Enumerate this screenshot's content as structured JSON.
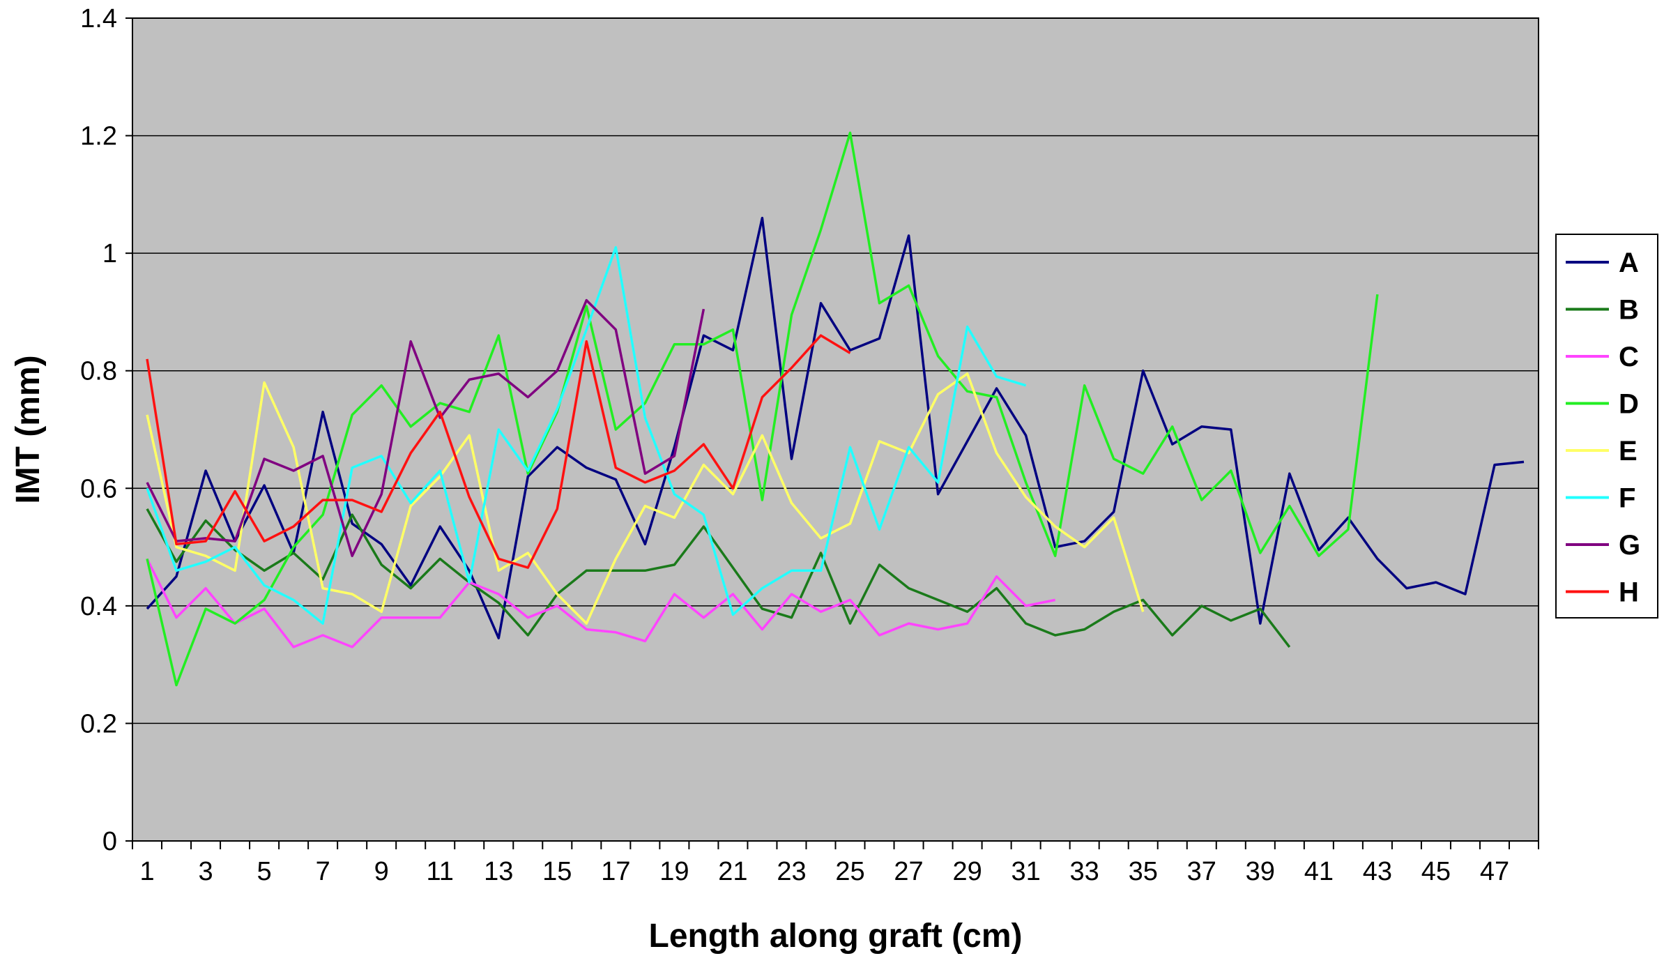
{
  "chart_data": {
    "type": "line",
    "xlabel": "Length along graft (cm)",
    "ylabel": "IMT (mm)",
    "xlim": [
      1,
      48
    ],
    "ylim": [
      0,
      1.4
    ],
    "x_ticks": [
      1,
      3,
      5,
      7,
      9,
      11,
      13,
      15,
      17,
      19,
      21,
      23,
      25,
      27,
      29,
      31,
      33,
      35,
      37,
      39,
      41,
      43,
      45,
      47
    ],
    "y_ticks": [
      0,
      0.2,
      0.4,
      0.6,
      0.8,
      1,
      1.2,
      1.4
    ],
    "y_tick_labels": [
      "0",
      "0.2",
      "0.4",
      "0.6",
      "0.8",
      "1",
      "1.2",
      "1.4"
    ],
    "grid": "horizontal",
    "background": "#c0c0c0",
    "legend_position": "right",
    "series": [
      {
        "name": "A",
        "color": "#000080",
        "values": [
          0.395,
          0.45,
          0.63,
          0.51,
          0.605,
          0.49,
          0.73,
          0.54,
          0.505,
          0.435,
          0.535,
          0.46,
          0.345,
          0.62,
          0.67,
          0.635,
          0.615,
          0.505,
          0.67,
          0.86,
          0.835,
          1.06,
          0.65,
          0.915,
          0.835,
          0.855,
          1.03,
          0.59,
          0.68,
          0.77,
          0.69,
          0.5,
          0.51,
          0.56,
          0.8,
          0.675,
          0.705,
          0.7,
          0.37,
          0.625,
          0.495,
          0.55,
          0.48,
          0.43,
          0.44,
          0.42,
          0.64,
          0.645
        ]
      },
      {
        "name": "B",
        "color": "#1a7a1a",
        "values": [
          0.565,
          0.475,
          0.545,
          0.495,
          0.46,
          0.49,
          0.445,
          0.555,
          0.47,
          0.43,
          0.48,
          0.44,
          0.405,
          0.35,
          0.42,
          0.46,
          0.46,
          0.46,
          0.47,
          0.535,
          0.465,
          0.395,
          0.38,
          0.49,
          0.37,
          0.47,
          0.43,
          0.41,
          0.39,
          0.43,
          0.37,
          0.35,
          0.36,
          0.39,
          0.41,
          0.35,
          0.4,
          0.375,
          0.395,
          0.33
        ]
      },
      {
        "name": "C",
        "color": "#ff44ff",
        "values": [
          0.48,
          0.38,
          0.43,
          0.37,
          0.395,
          0.33,
          0.35,
          0.33,
          0.38,
          0.38,
          0.38,
          0.44,
          0.42,
          0.38,
          0.4,
          0.36,
          0.355,
          0.34,
          0.42,
          0.38,
          0.42,
          0.36,
          0.42,
          0.39,
          0.41,
          0.35,
          0.37,
          0.36,
          0.37,
          0.45,
          0.4,
          0.41
        ]
      },
      {
        "name": "D",
        "color": "#22ee22",
        "values": [
          0.48,
          0.265,
          0.395,
          0.37,
          0.41,
          0.5,
          0.555,
          0.725,
          0.775,
          0.705,
          0.745,
          0.73,
          0.86,
          0.625,
          0.73,
          0.91,
          0.7,
          0.745,
          0.845,
          0.845,
          0.87,
          0.58,
          0.895,
          1.04,
          1.205,
          0.915,
          0.945,
          0.825,
          0.765,
          0.755,
          0.61,
          0.485,
          0.775,
          0.65,
          0.625,
          0.705,
          0.58,
          0.63,
          0.49,
          0.57,
          0.485,
          0.53,
          0.93
        ]
      },
      {
        "name": "E",
        "color": "#ffff66",
        "values": [
          0.725,
          0.5,
          0.485,
          0.46,
          0.78,
          0.67,
          0.43,
          0.42,
          0.39,
          0.57,
          0.62,
          0.69,
          0.46,
          0.49,
          0.42,
          0.37,
          0.48,
          0.57,
          0.55,
          0.64,
          0.59,
          0.69,
          0.575,
          0.515,
          0.54,
          0.68,
          0.66,
          0.76,
          0.795,
          0.66,
          0.585,
          0.535,
          0.5,
          0.55,
          0.39
        ]
      },
      {
        "name": "F",
        "color": "#22ffff",
        "values": [
          0.6,
          0.46,
          0.475,
          0.5,
          0.435,
          0.41,
          0.37,
          0.635,
          0.655,
          0.575,
          0.63,
          0.44,
          0.7,
          0.63,
          0.735,
          0.87,
          1.01,
          0.72,
          0.59,
          0.555,
          0.385,
          0.43,
          0.46,
          0.46,
          0.67,
          0.53,
          0.67,
          0.61,
          0.875,
          0.79,
          0.775
        ]
      },
      {
        "name": "G",
        "color": "#800080",
        "values": [
          0.61,
          0.51,
          0.515,
          0.51,
          0.65,
          0.63,
          0.655,
          0.485,
          0.59,
          0.85,
          0.72,
          0.785,
          0.795,
          0.755,
          0.8,
          0.92,
          0.87,
          0.625,
          0.655,
          0.905
        ]
      },
      {
        "name": "H",
        "color": "#ff1111",
        "values": [
          0.82,
          0.505,
          0.51,
          0.595,
          0.51,
          0.535,
          0.58,
          0.58,
          0.56,
          0.66,
          0.73,
          0.585,
          0.48,
          0.465,
          0.565,
          0.85,
          0.635,
          0.61,
          0.63,
          0.675,
          0.6,
          0.755,
          0.805,
          0.86,
          0.83
        ]
      }
    ]
  }
}
